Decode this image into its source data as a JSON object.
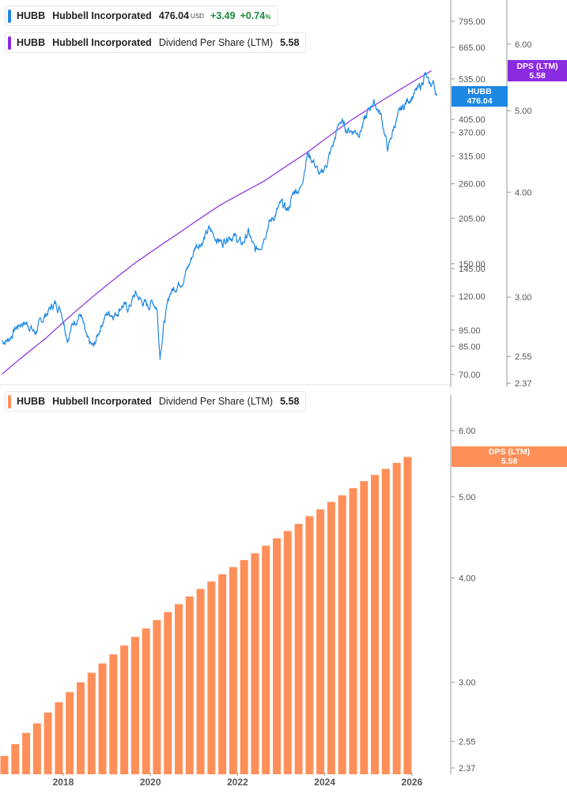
{
  "colors": {
    "price": "#1e88e5",
    "dps_line": "#8a2be2",
    "bars": "#ff8f59",
    "axis_text": "#555555",
    "positive": "#1a8a3c"
  },
  "legends": {
    "price": {
      "symbol": "HUBB",
      "name": "Hubbell Incorporated",
      "value": "476.04",
      "currency": "USD",
      "change": "+3.49",
      "pct": "+0.74",
      "pct_sign": "%"
    },
    "dps_top": {
      "symbol": "HUBB",
      "name": "Hubbell Incorporated",
      "metric": "Dividend Per Share (LTM)",
      "value": "5.58"
    },
    "dps_bottom": {
      "symbol": "HUBB",
      "name": "Hubbell Incorporated",
      "metric": "Dividend Per Share (LTM)",
      "value": "5.58"
    }
  },
  "tags": {
    "price": {
      "line1": "HUBB",
      "line2": "476.04"
    },
    "dps_top": {
      "line1": "DPS (LTM)",
      "line2": "5.58"
    },
    "dps_bottom": {
      "line1": "DPS (LTM)",
      "line2": "5.58"
    }
  },
  "chart_data": [
    {
      "type": "line",
      "scale": "log",
      "series": [
        {
          "key": "price",
          "x": [
            2016.6,
            2016.75,
            2016.9,
            2017.05,
            2017.2,
            2017.35,
            2017.5,
            2017.65,
            2017.8,
            2017.95,
            2018.1,
            2018.25,
            2018.4,
            2018.55,
            2018.7,
            2018.85,
            2018.95,
            2019.05,
            2019.2,
            2019.35,
            2019.5,
            2019.65,
            2019.8,
            2019.95,
            2020.05,
            2020.15,
            2020.22,
            2020.3,
            2020.45,
            2020.6,
            2020.75,
            2020.9,
            2021.05,
            2021.2,
            2021.35,
            2021.5,
            2021.65,
            2021.8,
            2021.95,
            2022.1,
            2022.25,
            2022.4,
            2022.55,
            2022.7,
            2022.85,
            2023.0,
            2023.15,
            2023.3,
            2023.45,
            2023.6,
            2023.75,
            2023.9,
            2024.05,
            2024.2,
            2024.35,
            2024.5,
            2024.65,
            2024.8,
            2024.95,
            2025.1,
            2025.2,
            2025.3,
            2025.45,
            2025.6,
            2025.75,
            2025.9,
            2026.05,
            2026.2,
            2026.3,
            2026.4,
            2026.5,
            2026.57
          ],
          "y": [
            88,
            89,
            96,
            100,
            99,
            93,
            101,
            108,
            114,
            110,
            90,
            101,
            106,
            88,
            84,
            97,
            104,
            107,
            106,
            113,
            110,
            122,
            116,
            112,
            116,
            111,
            80,
            97,
            123,
            129,
            135,
            150,
            171,
            175,
            190,
            180,
            173,
            183,
            180,
            171,
            186,
            163,
            173,
            196,
            209,
            226,
            216,
            248,
            252,
            322,
            302,
            272,
            300,
            342,
            403,
            378,
            375,
            372,
            410,
            458,
            440,
            412,
            328,
            390,
            430,
            462,
            482,
            506,
            556,
            508,
            522,
            476
          ]
        },
        {
          "key": "dps",
          "x": [
            2016.6,
            2017.6,
            2018.6,
            2019.6,
            2020.6,
            2021.6,
            2022.6,
            2023.6,
            2024.6,
            2025.6,
            2026.45
          ],
          "y": [
            2.43,
            2.68,
            2.98,
            3.28,
            3.56,
            3.86,
            4.12,
            4.46,
            4.87,
            5.25,
            5.58
          ]
        }
      ],
      "price_ticks": [
        "795.00",
        "665.00",
        "535.00",
        "405.00",
        "370.00",
        "315.00",
        "260.00",
        "205.00",
        "150.00",
        "145.00",
        "120.00",
        "95.00",
        "85.00",
        "70.00"
      ],
      "dps_ticks": [
        "6.00",
        "5.00",
        "4.00",
        "3.00",
        "2.55",
        "2.37"
      ]
    },
    {
      "type": "bar",
      "scale": "log",
      "x_start": 2016.65,
      "x_step": 0.25,
      "values": [
        2.45,
        2.53,
        2.61,
        2.68,
        2.76,
        2.84,
        2.92,
        3.0,
        3.08,
        3.16,
        3.24,
        3.32,
        3.4,
        3.48,
        3.56,
        3.64,
        3.72,
        3.8,
        3.88,
        3.96,
        4.04,
        4.12,
        4.2,
        4.28,
        4.37,
        4.46,
        4.55,
        4.64,
        4.74,
        4.83,
        4.93,
        5.02,
        5.12,
        5.22,
        5.31,
        5.4,
        5.49,
        5.58
      ],
      "dps_ticks": [
        "6.00",
        "5.00",
        "4.00",
        "3.00",
        "2.55",
        "2.37"
      ]
    }
  ],
  "xaxis": {
    "labels": [
      "2018",
      "2020",
      "2022",
      "2024",
      "2026"
    ]
  }
}
